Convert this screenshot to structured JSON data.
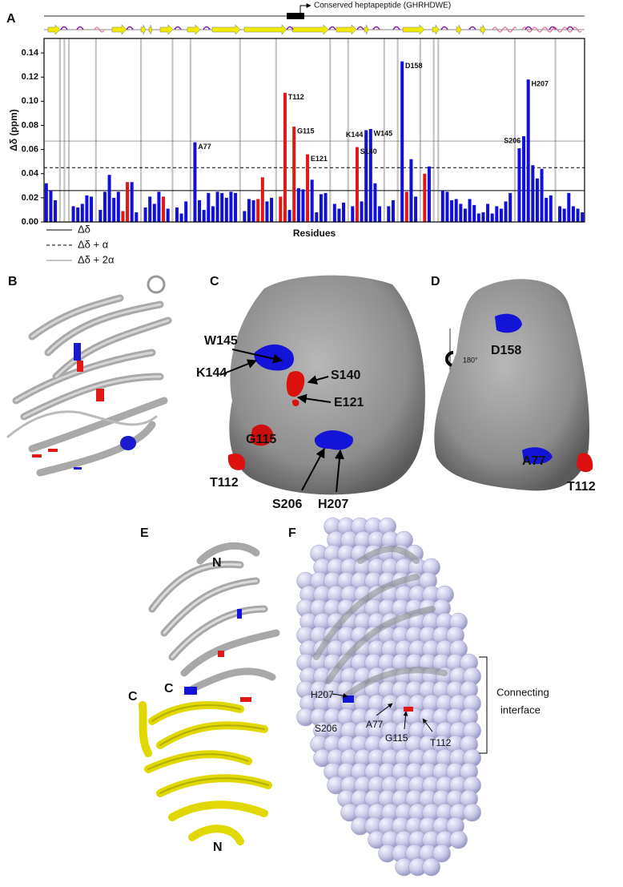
{
  "chart_data": {
    "type": "bar",
    "panel_label": "A",
    "y_label": "Δδ (ppm)",
    "x_label": "Residues",
    "ylim": [
      0,
      0.152
    ],
    "yticks": [
      {
        "value": 0,
        "label": "0.00"
      },
      {
        "value": 0.02,
        "label": "0.02"
      },
      {
        "value": 0.04,
        "label": "0.04"
      },
      {
        "value": 0.06,
        "label": "0.06"
      },
      {
        "value": 0.08,
        "label": "0.08"
      },
      {
        "value": 0.1,
        "label": "0.10"
      },
      {
        "value": 0.12,
        "label": "0.12"
      },
      {
        "value": 0.14,
        "label": "0.14"
      }
    ],
    "gap_color": "#c4c4c4",
    "categories": [
      null,
      null,
      null,
      null,
      null,
      null,
      null,
      null,
      null,
      null,
      null,
      null,
      null,
      null,
      null,
      null,
      null,
      null,
      null,
      null,
      null,
      null,
      null,
      null,
      null,
      null,
      null,
      null,
      null,
      null,
      null,
      null,
      null,
      "A77",
      null,
      null,
      null,
      null,
      null,
      null,
      null,
      null,
      null,
      null,
      null,
      null,
      null,
      null,
      null,
      null,
      null,
      null,
      null,
      "T112",
      null,
      "G115",
      null,
      null,
      "E121",
      null,
      null,
      null,
      null,
      null,
      null,
      null,
      null,
      null,
      null,
      "S140",
      null,
      "K144",
      "W145",
      null,
      null,
      null,
      null,
      null,
      null,
      "D158",
      null,
      null,
      null,
      null,
      null,
      null,
      null,
      null,
      null,
      null,
      null,
      null,
      null,
      null,
      null,
      null,
      null,
      null,
      null,
      null,
      null,
      null,
      null,
      null,
      null,
      null,
      "S206",
      "H207",
      null,
      null,
      null,
      null,
      null,
      null,
      null,
      null,
      null,
      null,
      null,
      null
    ],
    "series": [
      {
        "color": "#1010d8",
        "values": [
          0.032,
          0.026,
          0.018,
          null,
          null,
          null,
          0.013,
          0.012,
          0.015,
          0.022,
          0.021,
          null,
          0.01,
          0.025,
          0.039,
          0.02,
          0.025,
          null,
          null,
          0.033,
          0.008,
          null,
          0.012,
          0.021,
          0.015,
          0.025,
          null,
          0.011,
          null,
          0.012,
          0.007,
          0.017,
          null,
          0.066,
          0.018,
          0.01,
          0.024,
          0.013,
          0.025,
          0.024,
          0.02,
          0.025,
          0.024,
          null,
          0.009,
          0.019,
          0.018,
          null,
          null,
          0.017,
          0.02,
          null,
          null,
          null,
          0.01,
          null,
          0.028,
          0.027,
          null,
          0.035,
          0.008,
          0.023,
          0.024,
          null,
          0.015,
          0.011,
          0.016,
          null,
          0.013,
          null,
          0.017,
          0.076,
          0.077,
          0.032,
          0.013,
          null,
          0.013,
          0.018,
          null,
          0.133,
          null,
          0.052,
          0.021,
          null,
          null,
          0.046,
          null,
          null,
          0.026,
          0.025,
          0.018,
          0.019,
          0.015,
          0.011,
          0.019,
          0.014,
          0.007,
          0.008,
          0.015,
          0.007,
          0.013,
          0.011,
          0.017,
          0.024,
          null,
          0.061,
          0.071,
          0.118,
          0.047,
          0.036,
          0.044,
          0.02,
          0.022,
          null,
          0.013,
          0.011,
          0.024,
          0.013,
          0.011,
          0.008
        ]
      },
      {
        "color": "#e01818",
        "values": [
          null,
          null,
          null,
          null,
          null,
          null,
          null,
          null,
          null,
          null,
          null,
          null,
          null,
          null,
          null,
          null,
          null,
          0.009,
          0.033,
          null,
          null,
          null,
          null,
          null,
          null,
          null,
          0.021,
          null,
          null,
          null,
          null,
          null,
          null,
          null,
          null,
          null,
          null,
          null,
          null,
          null,
          null,
          null,
          null,
          null,
          null,
          null,
          null,
          0.019,
          0.037,
          null,
          null,
          null,
          0.021,
          0.107,
          null,
          0.079,
          null,
          null,
          0.056,
          null,
          null,
          null,
          null,
          null,
          null,
          null,
          null,
          null,
          null,
          0.062,
          null,
          null,
          null,
          null,
          null,
          null,
          null,
          null,
          null,
          null,
          0.025,
          null,
          null,
          null,
          0.04,
          null,
          null,
          null,
          null,
          null,
          null,
          null,
          null,
          null,
          null,
          null,
          null,
          null,
          null,
          null,
          null,
          null,
          null,
          null,
          null,
          null,
          null,
          null,
          null,
          null,
          null,
          null,
          null,
          null,
          null,
          null,
          null,
          null,
          null,
          null
        ]
      }
    ],
    "reference_lines": [
      {
        "name": "Δδ",
        "value": 0.026,
        "style": "solid"
      },
      {
        "name": "Δδ + α",
        "value": 0.045,
        "style": "dashed"
      },
      {
        "name": "Δδ + 2α",
        "value": 0.067,
        "style": "thin"
      }
    ]
  },
  "heptapeptide": "Conserved heptapeptide (GHRHDWE)",
  "panels": [
    {
      "letter": "B"
    },
    {
      "letter": "C",
      "labels": [
        "W145",
        "K144",
        "S140",
        "E121",
        "G115",
        "T112",
        "S206",
        "H207"
      ]
    },
    {
      "letter": "D",
      "labels": [
        "D158",
        "180°",
        "A77",
        "T112"
      ]
    },
    {
      "letter": "E",
      "labels": [
        "N",
        "C",
        "C",
        "N"
      ]
    },
    {
      "letter": "F",
      "labels": [
        "H207",
        "S206",
        "A77",
        "G115",
        "T112"
      ],
      "bracket_label": [
        "Connecting",
        "interface"
      ]
    }
  ]
}
